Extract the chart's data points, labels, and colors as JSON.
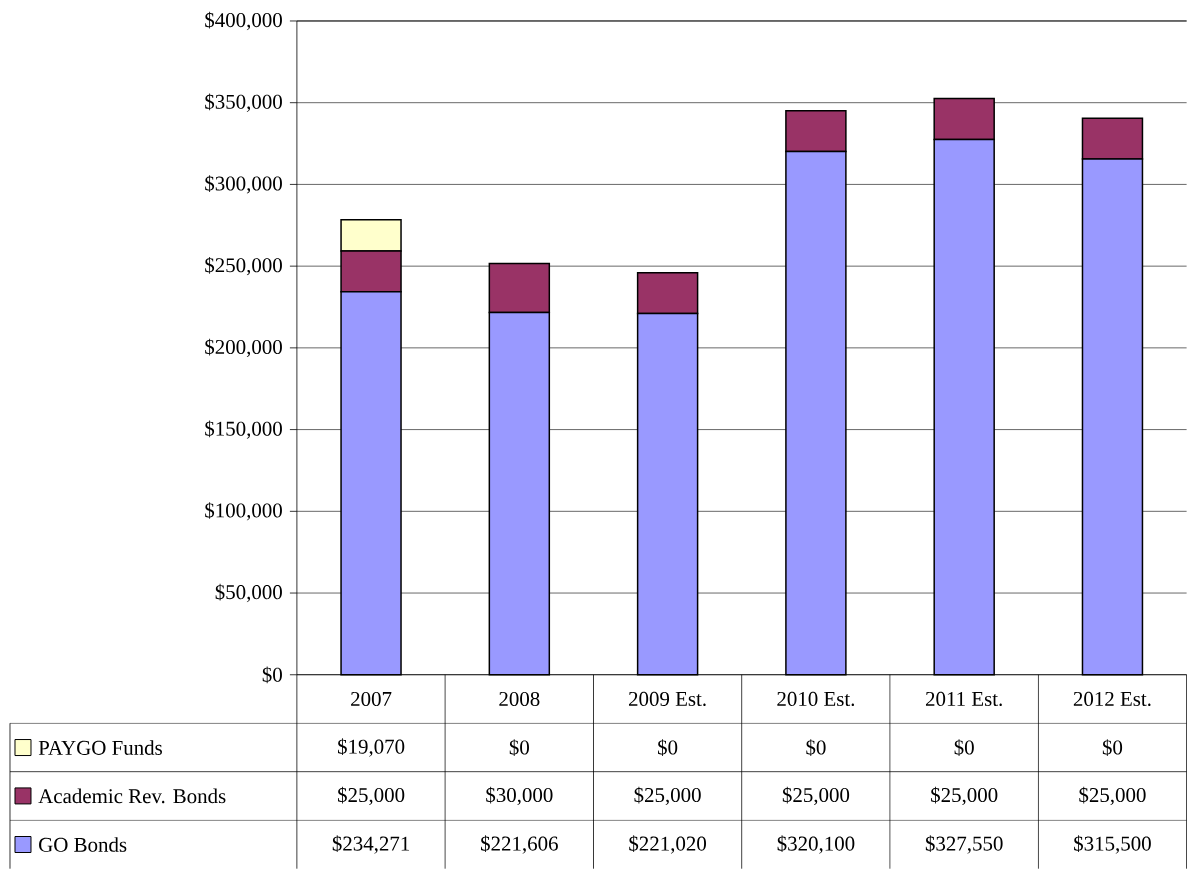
{
  "chart_data": {
    "type": "bar",
    "stacked": true,
    "categories": [
      "2007",
      "2008",
      "2009 Est.",
      "2010 Est.",
      "2011 Est.",
      "2012 Est."
    ],
    "series": [
      {
        "name": "GO Bonds",
        "color": "#9999ff",
        "values": [
          234271,
          221606,
          221020,
          320100,
          327550,
          315500
        ],
        "value_labels": [
          "$234,271",
          "$221,606",
          "$221,020",
          "$320,100",
          "$327,550",
          "$315,500"
        ]
      },
      {
        "name": "Academic Rev. Bonds",
        "color": "#993366",
        "values": [
          25000,
          30000,
          25000,
          25000,
          25000,
          25000
        ],
        "value_labels": [
          "$25,000",
          "$30,000",
          "$25,000",
          "$25,000",
          "$25,000",
          "$25,000"
        ]
      },
      {
        "name": "PAYGO Funds",
        "color": "#ffffcc",
        "values": [
          19070,
          0,
          0,
          0,
          0,
          0
        ],
        "value_labels": [
          "$19,070",
          "$0",
          "$0",
          "$0",
          "$0",
          "$0"
        ]
      }
    ],
    "ylim": [
      0,
      400000
    ],
    "yticks": [
      {
        "value": 0,
        "label": "$0"
      },
      {
        "value": 50000,
        "label": "$50,000"
      },
      {
        "value": 100000,
        "label": "$100,000"
      },
      {
        "value": 150000,
        "label": "$150,000"
      },
      {
        "value": 200000,
        "label": "$200,000"
      },
      {
        "value": 250000,
        "label": "$250,000"
      },
      {
        "value": 300000,
        "label": "$300,000"
      },
      {
        "value": 350000,
        "label": "$350,000"
      },
      {
        "value": 400000,
        "label": "$400,000"
      }
    ],
    "grid": "y",
    "legend": "bottom left"
  }
}
